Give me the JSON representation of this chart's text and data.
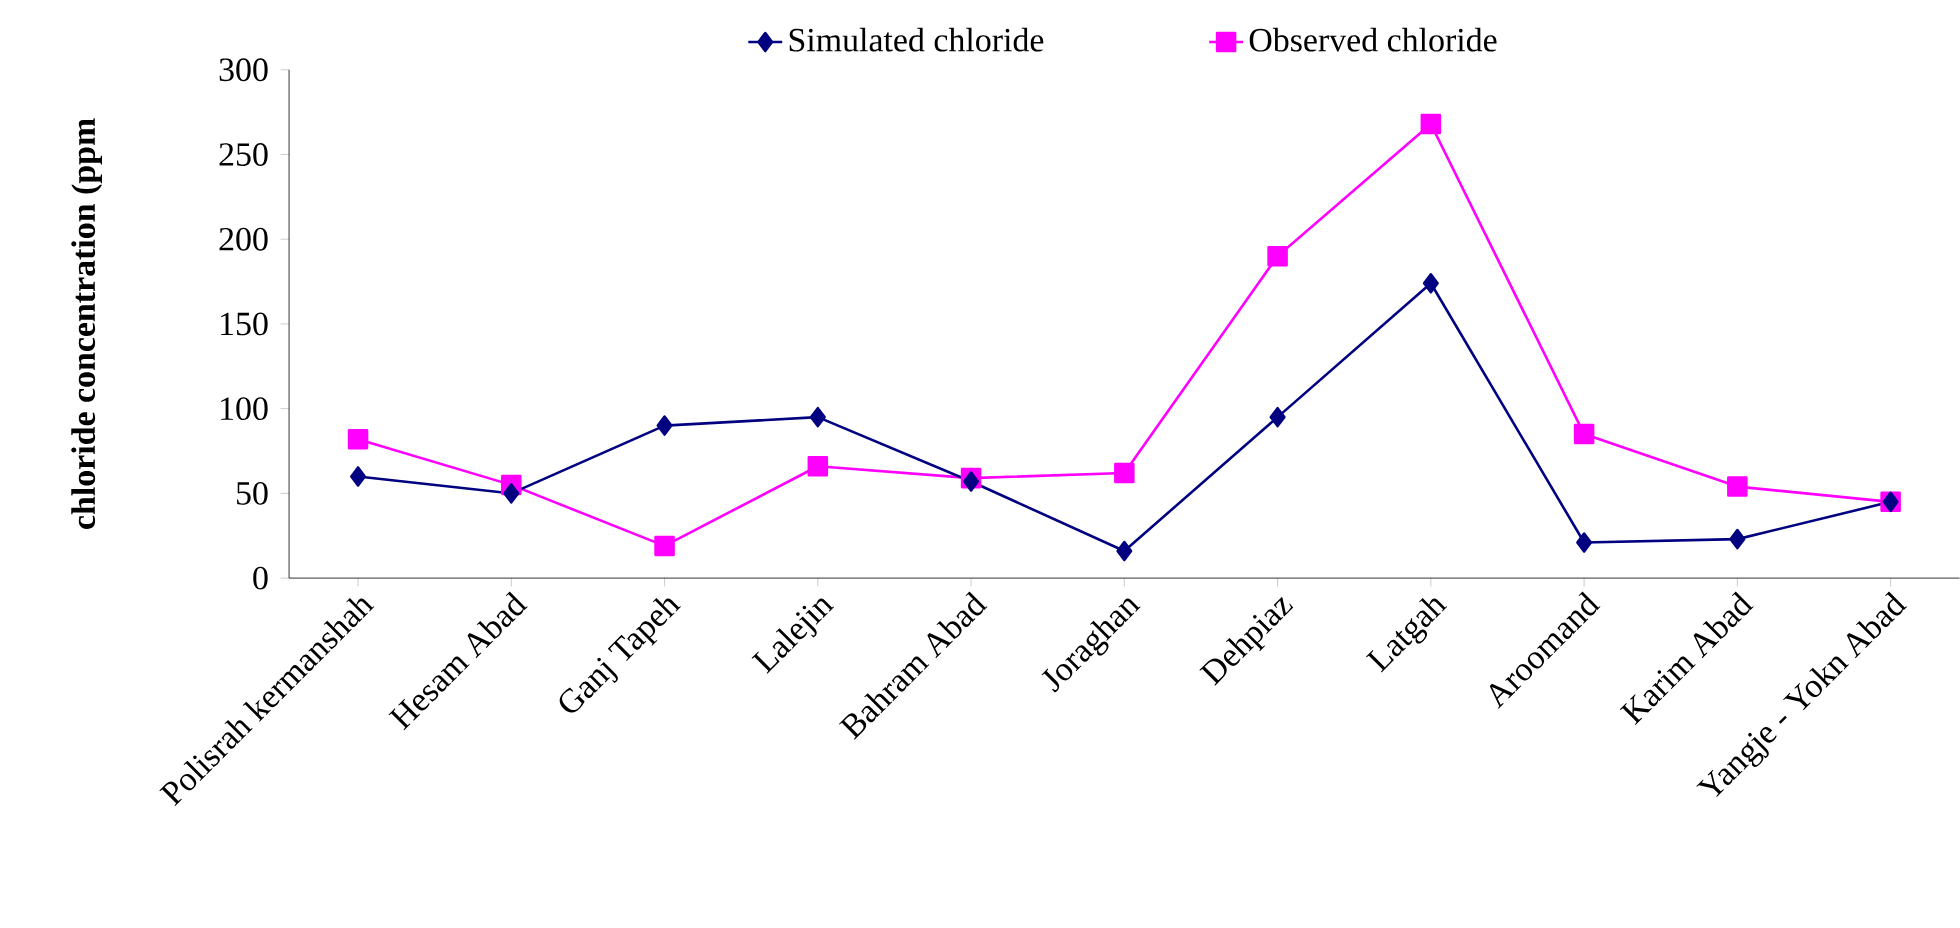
{
  "chart_data": {
    "type": "line",
    "ylabel": "chloride concentration (ppm",
    "categories": [
      "Polisrah kermanshah",
      "Hesam Abad",
      "Ganj Tapeh",
      "Lalejin",
      "Bahram Abad",
      "Joraghan",
      "Dehpiaz",
      "Latgah",
      "Aroomand",
      "Karim Abad",
      "Yangje - Yokn Abad"
    ],
    "series": [
      {
        "name": "Simulated chloride",
        "color": "#000080",
        "marker": "diamond",
        "values": [
          60,
          50,
          90,
          95,
          57,
          16,
          95,
          174,
          21,
          23,
          45
        ]
      },
      {
        "name": "Observed chloride",
        "color": "#ff00ff",
        "marker": "square",
        "values": [
          82,
          55,
          19,
          66,
          59,
          62,
          190,
          268,
          85,
          54,
          45
        ]
      }
    ],
    "ylim": [
      0,
      300
    ],
    "yticks": [
      0,
      50,
      100,
      150,
      200,
      250,
      300
    ],
    "legend": "top",
    "grid": false
  }
}
